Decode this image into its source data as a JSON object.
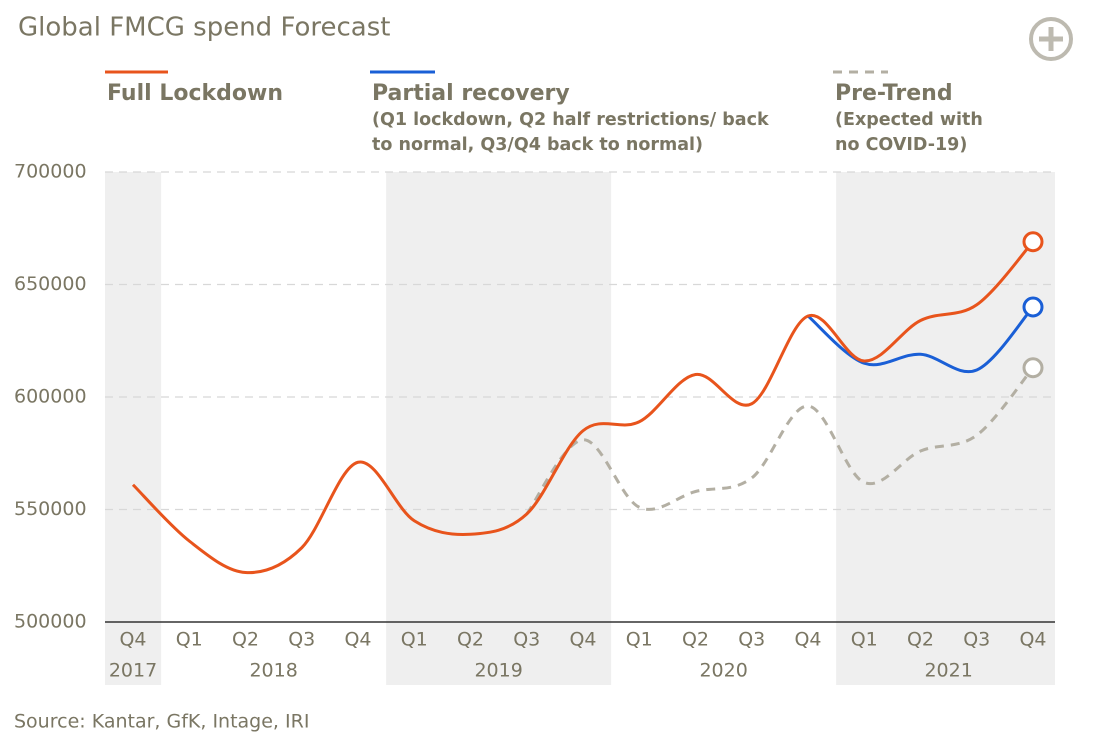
{
  "chart_data": {
    "type": "line",
    "title": "Global FMCG spend Forecast",
    "source": "Source: Kantar, GfK, Intage, IRI",
    "categories": [
      "Q4",
      "Q1",
      "Q2",
      "Q3",
      "Q4",
      "Q1",
      "Q2",
      "Q3",
      "Q4",
      "Q1",
      "Q2",
      "Q3",
      "Q4",
      "Q1",
      "Q2",
      "Q3",
      "Q4"
    ],
    "category_groups": [
      "2017",
      "2018",
      "2018",
      "2018",
      "2018",
      "2019",
      "2019",
      "2019",
      "2019",
      "2020",
      "2020",
      "2020",
      "2020",
      "2021",
      "2021",
      "2021",
      "2021"
    ],
    "series": [
      {
        "name": "Full Lockdown",
        "color": "#e8541c",
        "dashed": false,
        "values": [
          561000,
          536000,
          522000,
          533000,
          571000,
          545000,
          539000,
          548000,
          585000,
          589000,
          610000,
          597000,
          636000,
          616000,
          634000,
          641000,
          669000
        ]
      },
      {
        "name": "Partial recovery",
        "color": "#1a5fd6",
        "dashed": false,
        "note": [
          "(Q1 lockdown, Q2 half restrictions/ back",
          "to normal, Q3/Q4 back to normal)"
        ],
        "values": [
          null,
          null,
          null,
          null,
          null,
          null,
          null,
          null,
          null,
          null,
          null,
          null,
          636000,
          615000,
          619000,
          612000,
          640000
        ]
      },
      {
        "name": "Pre-Trend",
        "color": "#b3afa3",
        "dashed": true,
        "note": [
          "(Expected with",
          "no COVID-19)"
        ],
        "values": [
          null,
          null,
          null,
          null,
          null,
          null,
          null,
          548000,
          581000,
          551000,
          558000,
          564000,
          596000,
          562000,
          576000,
          583000,
          613000
        ]
      }
    ],
    "ylim": [
      500000,
      700000
    ],
    "yticks": [
      500000,
      550000,
      600000,
      650000,
      700000
    ],
    "grid": true
  }
}
